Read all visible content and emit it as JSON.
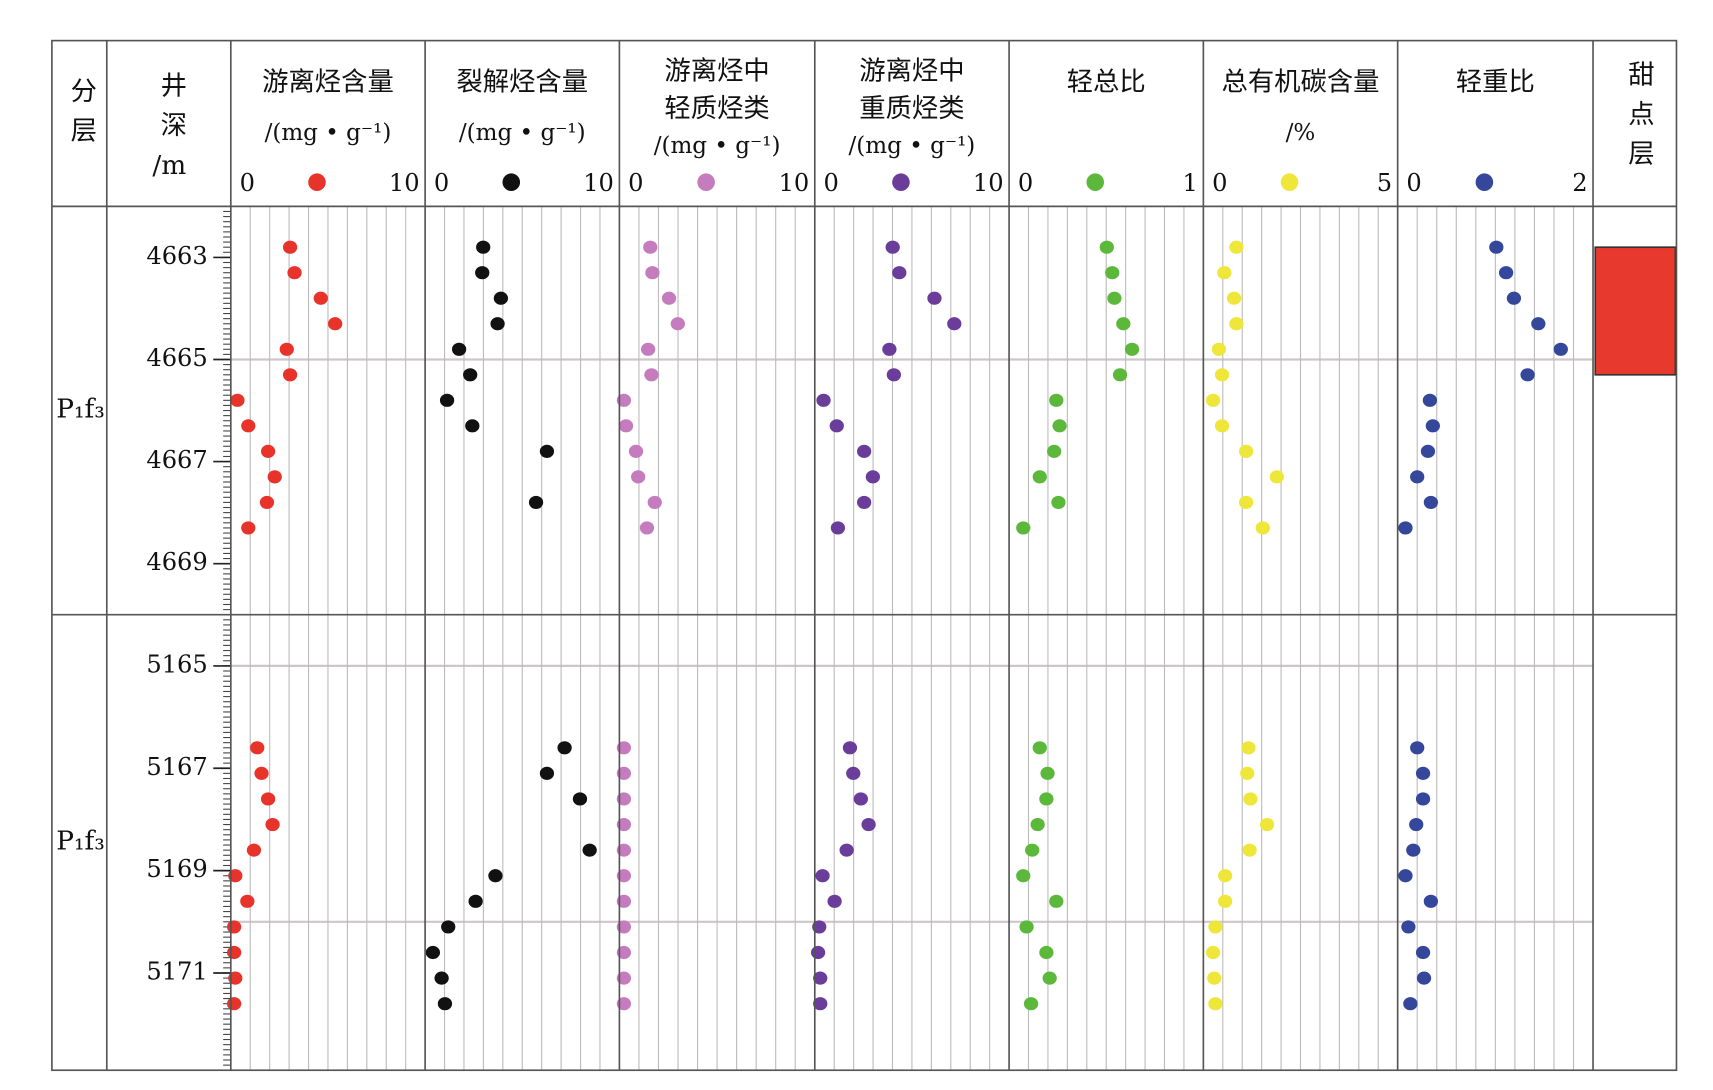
{
  "chart_data": {
    "type": "well-log",
    "columns": {
      "layer": "分层",
      "depth": "井深",
      "depth_unit": "/m",
      "sweet": "甜点层"
    },
    "depth_minor_step": 0.1,
    "intervals": [
      {
        "layer": "P₁f₃",
        "ylim": [
          4662,
          4670
        ],
        "yticks": [
          4663,
          4665,
          4667,
          4669
        ],
        "hgrid": [
          4665
        ],
        "depths": [
          4662.8,
          4663.3,
          4663.8,
          4664.3,
          4664.8,
          4665.3,
          4665.8,
          4666.3,
          4666.8,
          4667.3,
          4667.8,
          4668.3
        ],
        "sweet_spots": [
          {
            "top": 4662.8,
            "bottom": 4665.3,
            "color": "#e8392f"
          }
        ]
      },
      {
        "layer": "P₁f₃",
        "ylim": [
          5164,
          5172.9
        ],
        "yticks": [
          5165,
          5167,
          5169,
          5171
        ],
        "hgrid": [
          5165,
          5170
        ],
        "depths": [
          5166.6,
          5167.1,
          5167.6,
          5168.1,
          5168.6,
          5169.1,
          5169.6,
          5170.1,
          5170.6,
          5171.1,
          5171.6
        ]
      }
    ],
    "tracks": [
      {
        "title": [
          "游离烃含量"
        ],
        "unit": "/(mg • g⁻¹)",
        "xlim": [
          0,
          10
        ],
        "xticks": [
          0,
          10
        ],
        "minor_step": 1,
        "color": "#e8332a",
        "values": [
          [
            3.05,
            3.28,
            4.63,
            5.37,
            2.88,
            3.05,
            0.34,
            0.9,
            1.92,
            2.26,
            1.86,
            0.9
          ],
          [
            1.36,
            1.58,
            1.92,
            2.15,
            1.19,
            0.23,
            0.85,
            0.17,
            0.17,
            0.23,
            0.17
          ]
        ]
      },
      {
        "title": [
          "裂解烃含量"
        ],
        "unit": "/(mg • g⁻¹)",
        "xlim": [
          0,
          10
        ],
        "xticks": [
          0,
          10
        ],
        "minor_step": 1,
        "color": "#111111",
        "values": [
          [
            2.99,
            2.94,
            3.9,
            3.73,
            1.75,
            2.32,
            1.13,
            2.43,
            6.27,
            null,
            5.71,
            null
          ],
          [
            7.18,
            6.27,
            7.97,
            null,
            8.47,
            3.62,
            2.6,
            1.19,
            0.4,
            0.85,
            1.02
          ]
        ]
      },
      {
        "title": [
          "游离烃中",
          "轻质烃类"
        ],
        "unit": "/(mg • g⁻¹)",
        "xlim": [
          0,
          10
        ],
        "xticks": [
          0,
          10
        ],
        "minor_step": 1,
        "color": "#c47cbf",
        "values": [
          [
            1.58,
            1.69,
            2.54,
            2.99,
            1.47,
            1.64,
            0.23,
            0.34,
            0.85,
            0.96,
            1.81,
            1.41
          ],
          [
            0.23,
            0.23,
            0.23,
            0.23,
            0.23,
            0.23,
            0.23,
            0.23,
            0.23,
            0.23,
            0.23
          ]
        ]
      },
      {
        "title": [
          "游离烃中",
          "重质烃类"
        ],
        "unit": "/(mg • g⁻¹)",
        "xlim": [
          0,
          10
        ],
        "xticks": [
          0,
          10
        ],
        "minor_step": 1,
        "color": "#6a3d9a",
        "values": [
          [
            4.01,
            4.35,
            6.16,
            7.18,
            3.84,
            4.07,
            0.45,
            1.13,
            2.54,
            2.99,
            2.54,
            1.19
          ],
          [
            1.81,
            1.98,
            2.37,
            2.77,
            1.64,
            0.4,
            1.02,
            0.23,
            0.17,
            0.28,
            0.28
          ]
        ]
      },
      {
        "title": [
          "轻总比"
        ],
        "xlim": [
          0,
          1
        ],
        "xticks": [
          0,
          1
        ],
        "minor_step": 0.1,
        "color": "#5cb83a",
        "values": [
          [
            0.503,
            0.531,
            0.542,
            0.588,
            0.633,
            0.571,
            0.243,
            0.26,
            0.232,
            0.158,
            0.254,
            0.073
          ],
          [
            0.158,
            0.198,
            0.192,
            0.147,
            0.119,
            0.073,
            0.243,
            0.09,
            0.192,
            0.209,
            0.113
          ]
        ]
      },
      {
        "title": [
          "总有机碳含量"
        ],
        "unit": "/%",
        "xlim": [
          0,
          5
        ],
        "xticks": [
          0,
          5
        ],
        "minor_step": 0.5,
        "color": "#efe63a",
        "values": [
          [
            0.85,
            0.54,
            0.79,
            0.85,
            0.4,
            0.48,
            0.25,
            0.48,
            1.1,
            1.89,
            1.1,
            1.53
          ],
          [
            1.16,
            1.13,
            1.21,
            1.64,
            1.19,
            0.56,
            0.56,
            0.31,
            0.25,
            0.28,
            0.31
          ]
        ]
      },
      {
        "title": [
          "轻重比"
        ],
        "xlim": [
          0,
          2
        ],
        "xticks": [
          0,
          2
        ],
        "minor_step": 0.2,
        "color": "#34479a",
        "values": [
          [
            1.01,
            1.11,
            1.19,
            1.44,
            1.67,
            1.33,
            0.33,
            0.36,
            0.31,
            0.2,
            0.34,
            0.08
          ],
          [
            0.2,
            0.26,
            0.26,
            0.19,
            0.16,
            0.08,
            0.34,
            0.11,
            0.26,
            0.27,
            0.13
          ]
        ]
      }
    ]
  }
}
